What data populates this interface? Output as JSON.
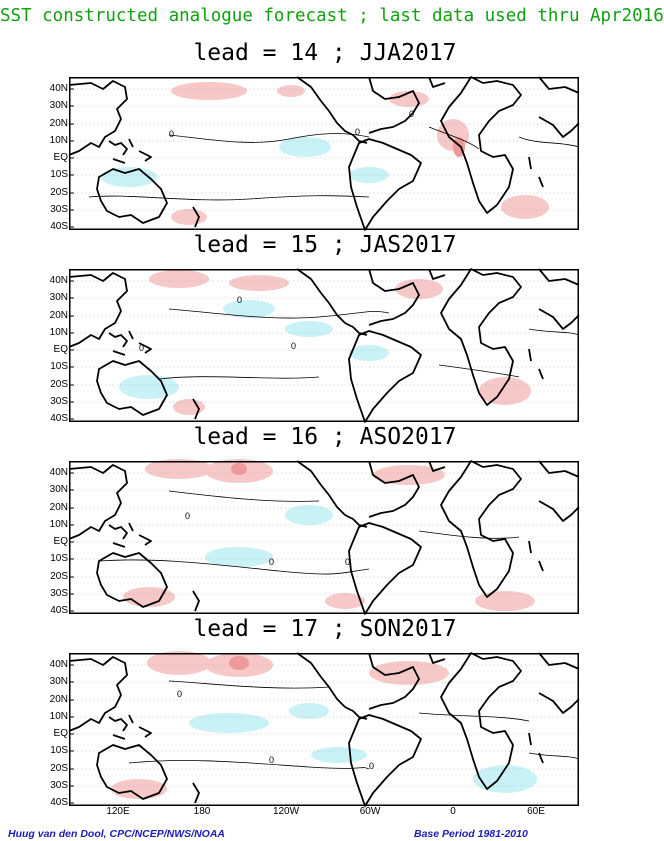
{
  "header": {
    "title": "SST constructed analogue forecast ; last data used thru Apr2016"
  },
  "panels": [
    {
      "title": "lead = 14 ; JJA2017"
    },
    {
      "title": "lead = 15 ; JAS2017"
    },
    {
      "title": "lead = 16 ; ASO2017"
    },
    {
      "title": "lead = 17 ; SON2017"
    }
  ],
  "lat_labels": [
    "40N",
    "30N",
    "20N",
    "10N",
    "EQ",
    "10S",
    "20S",
    "30S",
    "40S"
  ],
  "lon_labels": [
    "120E",
    "180",
    "120W",
    "60W",
    "0",
    "60E"
  ],
  "footer": {
    "credit": "Huug van den Dool, CPC/NCEP/NWS/NOAA",
    "base_period": "Base Period 1981-2010"
  },
  "colors": {
    "header": "#10a010",
    "credit": "#1c1cb8",
    "warm_anomaly": "#f7c8c8",
    "warm_anomaly_strong": "#ee9a9a",
    "cool_anomaly": "#c8f2f6"
  },
  "map": {
    "lat_range": [
      "40S",
      "40N"
    ],
    "lon_range": [
      "90E",
      "80E"
    ],
    "contour_label": "0"
  }
}
